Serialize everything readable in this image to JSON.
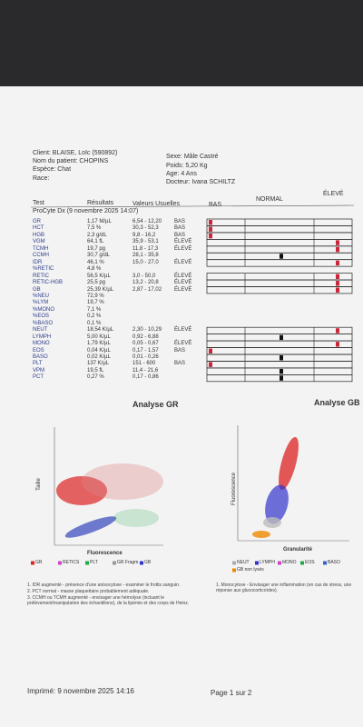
{
  "header": {
    "client": "Client: BLAISE, Loïc (590892)",
    "patient": "Nom du patient: CHOPINS",
    "species": "Espèce: Chat",
    "breed": "Race:",
    "sex": "Sexe: Mâle Castré",
    "weight": "Poids: 5,20 Kg",
    "age": "Age: 4 Ans",
    "doctor": "Docteur: Ivana SCHILTZ"
  },
  "table": {
    "columns": [
      "Test",
      "Résultats",
      "Valeurs Usuelles",
      "BAS",
      "NORMAL",
      "ÉLEVÉ"
    ],
    "section": "ProCyte Dx (9 novembre 2025 14:07)",
    "rows": [
      {
        "test": "GR",
        "result": "1,17 M/µL",
        "range": "6,54 - 12,20",
        "flag": "BAS"
      },
      {
        "test": "HCT",
        "result": "7,5 %",
        "range": "30,3 - 52,3",
        "flag": "BAS"
      },
      {
        "test": "HGB",
        "result": "2,3 g/dL",
        "range": "9,8 - 16,2",
        "flag": "BAS"
      },
      {
        "test": "VGM",
        "result": "64,1 fL",
        "range": "35,9 - 53,1",
        "flag": "ÉLEVÉ"
      },
      {
        "test": "TCMH",
        "result": "19,7 pg",
        "range": "11,8 - 17,3",
        "flag": "ÉLEVÉ"
      },
      {
        "test": "CCMH",
        "result": "30,7 g/dL",
        "range": "28,1 - 35,8"
      },
      {
        "test": "IDR",
        "result": "46,1 %",
        "range": "15,0 - 27,0",
        "flag": "ÉLEVÉ"
      },
      {
        "test": "%RETIC",
        "result": "4,8 %"
      },
      {
        "test": "RETIC",
        "result": "56,5 K/µL",
        "range": "3,0 - 50,0",
        "flag": "ÉLEVÉ"
      },
      {
        "test": "RETIC-HGB",
        "result": "25,5 pg",
        "range": "13,2 - 20,8",
        "flag": "ÉLEVÉ"
      },
      {
        "test": "GB",
        "result": "25,39 K/µL",
        "range": "2,87 - 17,02",
        "flag": "ÉLEVÉ"
      },
      {
        "test": "%NEU",
        "result": "72,9 %"
      },
      {
        "test": "%LYM",
        "result": "19,7 %"
      },
      {
        "test": "%MONO",
        "result": "7,1 %"
      },
      {
        "test": "%EOS",
        "result": "0,2 %"
      },
      {
        "test": "%BASO",
        "result": "0,1 %"
      },
      {
        "test": "NEUT",
        "result": "18,54 K/µL",
        "range": "2,30 - 10,29",
        "flag": "ÉLEVÉ"
      },
      {
        "test": "LYMPH",
        "result": "5,00 K/µL",
        "range": "0,92 - 6,88"
      },
      {
        "test": "MONO",
        "result": "1,79 K/µL",
        "range": "0,05 - 0,67",
        "flag": "ÉLEVÉ"
      },
      {
        "test": "EOS",
        "result": "0,04 K/µL",
        "range": "0,17 - 1,57",
        "flag": "BAS"
      },
      {
        "test": "BASO",
        "result": "0,02 K/µL",
        "range": "0,01 - 0,26"
      },
      {
        "test": "PLT",
        "result": "137 K/µL",
        "range": "151 - 600",
        "flag": "BAS"
      },
      {
        "test": "VPM",
        "result": "19,5 fL",
        "range": "11,4 - 21,6"
      },
      {
        "test": "PCT",
        "result": "0,27 %",
        "range": "0,17 - 0,86"
      }
    ]
  },
  "charts": [
    {
      "title": "Analyse GR",
      "y_label": "Taille",
      "x_label": "Fluorescence",
      "legend": [
        "GR",
        "RETICS",
        "PLT",
        "GR Fragm.",
        "GB"
      ]
    },
    {
      "title": "Analyse GB",
      "y_label": "Fluorescence",
      "x_label": "Granularité",
      "legend": [
        "NEUT",
        "LYMPH",
        "MONO",
        "EOS",
        "BASO",
        "GB non lysés"
      ]
    }
  ],
  "notes_left": [
    "1. IDR augmenté - présence d'une anisocytose - examiner le frottis sanguin.",
    "2. PCT normal - masse plaquettaire probablement adéquate.",
    "3. CCMH ou TCMH augmenté - envisager une hémolyse (incluant le prélèvement/manipulation des échantillons), de la lipémie et des corps de Heinz."
  ],
  "notes_right": [
    "1. Monocytose - Envisager une inflammation (en cas de stress, une réponse aux glucocorticoïdes)."
  ],
  "footer": {
    "printed": "Imprimé: 9 novembre 2025 14:16",
    "page": "Page 1 sur 2"
  }
}
